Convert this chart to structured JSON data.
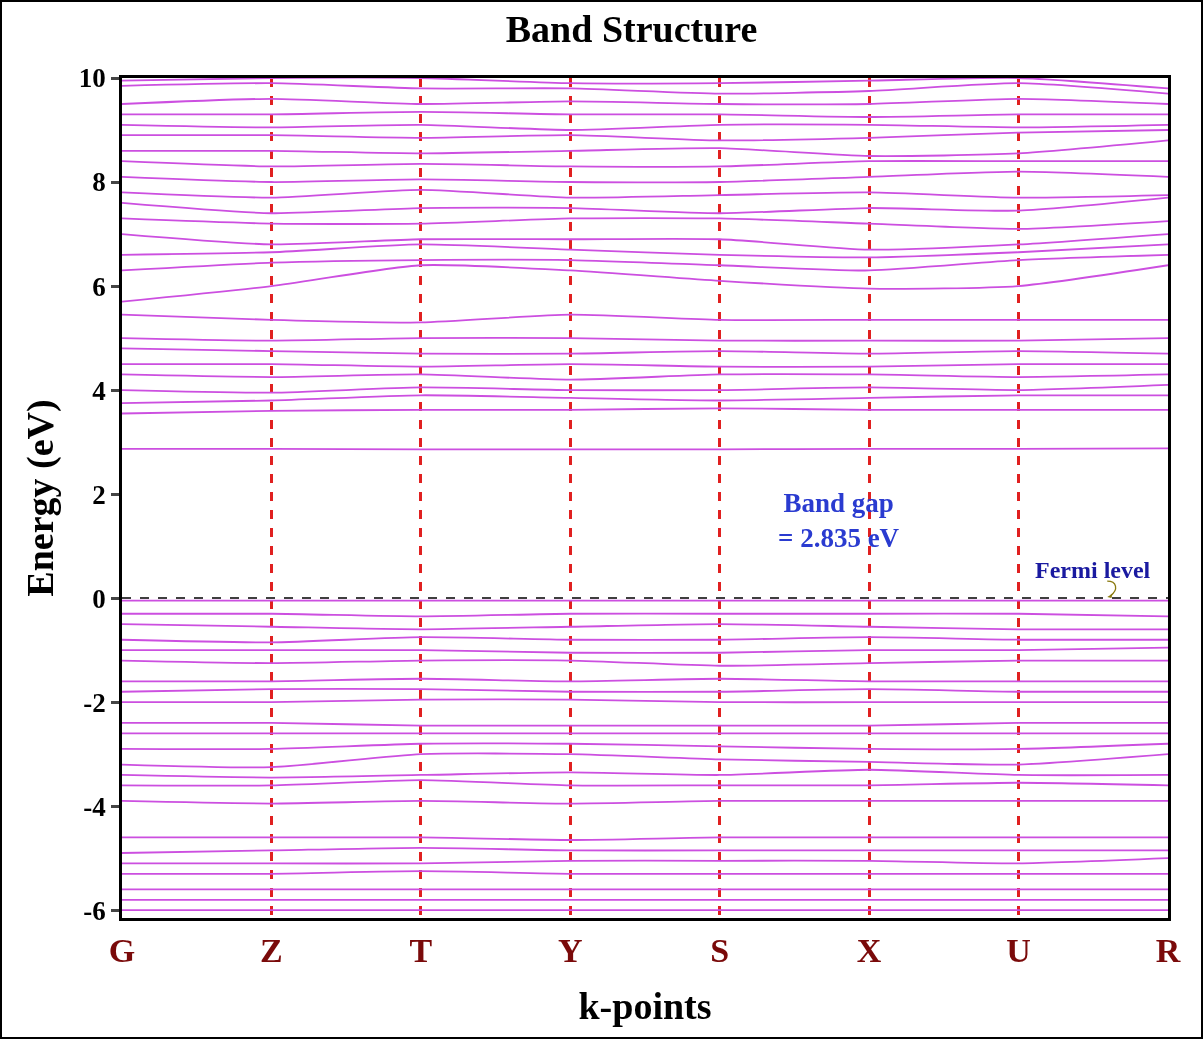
{
  "chart_data": {
    "type": "line",
    "title": "Band Structure",
    "xlabel": "k-points",
    "ylabel": "Energy (eV)",
    "categories": [
      "G",
      "Z",
      "T",
      "Y",
      "S",
      "X",
      "U",
      "R"
    ],
    "ylim": [
      -6.15,
      10
    ],
    "yticks": [
      -6,
      -4,
      -2,
      0,
      2,
      4,
      6,
      8,
      10
    ],
    "grid": "x",
    "marker": "none",
    "line_style": "solid",
    "series": [
      {
        "color": "#cc4fe0",
        "values": [
          2.87,
          2.87,
          2.86,
          2.86,
          2.86,
          2.87,
          2.87,
          2.88
        ]
      },
      {
        "color": "#cc4fe0",
        "values": [
          3.55,
          3.6,
          3.62,
          3.62,
          3.65,
          3.62,
          3.62,
          3.62
        ]
      },
      {
        "color": "#cc4fe0",
        "values": [
          3.75,
          3.8,
          3.9,
          3.85,
          3.8,
          3.85,
          3.9,
          3.9
        ]
      },
      {
        "color": "#cc4fe0",
        "values": [
          4.0,
          3.95,
          4.05,
          4.0,
          4.0,
          4.05,
          4.0,
          4.1
        ]
      },
      {
        "color": "#cc4fe0",
        "values": [
          4.3,
          4.25,
          4.3,
          4.2,
          4.3,
          4.3,
          4.25,
          4.3
        ]
      },
      {
        "color": "#cc4fe0",
        "values": [
          4.5,
          4.5,
          4.45,
          4.5,
          4.45,
          4.45,
          4.5,
          4.5
        ]
      },
      {
        "color": "#cc4fe0",
        "values": [
          4.8,
          4.75,
          4.7,
          4.7,
          4.75,
          4.7,
          4.75,
          4.7
        ]
      },
      {
        "color": "#cc4fe0",
        "values": [
          5.0,
          4.95,
          5.0,
          5.0,
          4.95,
          4.95,
          4.95,
          5.0
        ]
      },
      {
        "color": "#cc4fe0",
        "values": [
          5.45,
          5.35,
          5.3,
          5.45,
          5.35,
          5.35,
          5.35,
          5.35
        ]
      },
      {
        "color": "#cc4fe0",
        "values": [
          5.7,
          6.0,
          6.4,
          6.3,
          6.1,
          5.95,
          6.0,
          6.4
        ]
      },
      {
        "color": "#cc4fe0",
        "values": [
          6.3,
          6.45,
          6.5,
          6.5,
          6.4,
          6.3,
          6.5,
          6.6
        ]
      },
      {
        "color": "#cc4fe0",
        "values": [
          6.6,
          6.65,
          6.8,
          6.7,
          6.6,
          6.55,
          6.65,
          6.8
        ]
      },
      {
        "color": "#cc4fe0",
        "values": [
          7.0,
          6.8,
          6.9,
          6.9,
          6.9,
          6.7,
          6.8,
          7.0
        ]
      },
      {
        "color": "#cc4fe0",
        "values": [
          7.3,
          7.2,
          7.2,
          7.3,
          7.3,
          7.2,
          7.1,
          7.25
        ]
      },
      {
        "color": "#cc4fe0",
        "values": [
          7.6,
          7.4,
          7.5,
          7.5,
          7.4,
          7.5,
          7.45,
          7.7
        ]
      },
      {
        "color": "#cc4fe0",
        "values": [
          7.8,
          7.7,
          7.85,
          7.7,
          7.75,
          7.8,
          7.7,
          7.75
        ]
      },
      {
        "color": "#cc4fe0",
        "values": [
          8.1,
          8.0,
          8.05,
          8.0,
          8.0,
          8.1,
          8.2,
          8.1
        ]
      },
      {
        "color": "#cc4fe0",
        "values": [
          8.4,
          8.3,
          8.35,
          8.3,
          8.3,
          8.4,
          8.4,
          8.4
        ]
      },
      {
        "color": "#cc4fe0",
        "values": [
          8.6,
          8.6,
          8.55,
          8.6,
          8.65,
          8.5,
          8.55,
          8.8
        ]
      },
      {
        "color": "#cc4fe0",
        "values": [
          8.9,
          8.9,
          8.85,
          8.9,
          8.8,
          8.85,
          8.95,
          9.0
        ]
      },
      {
        "color": "#cc4fe0",
        "values": [
          9.1,
          9.05,
          9.1,
          9.0,
          9.1,
          9.1,
          9.05,
          9.1
        ]
      },
      {
        "color": "#cc4fe0",
        "values": [
          9.3,
          9.3,
          9.35,
          9.3,
          9.3,
          9.25,
          9.3,
          9.3
        ]
      },
      {
        "color": "#cc4fe0",
        "values": [
          9.5,
          9.6,
          9.5,
          9.55,
          9.5,
          9.5,
          9.6,
          9.5
        ]
      },
      {
        "color": "#cc4fe0",
        "values": [
          9.85,
          9.9,
          9.8,
          9.8,
          9.7,
          9.75,
          9.9,
          9.7
        ]
      },
      {
        "color": "#cc4fe0",
        "values": [
          9.95,
          10.0,
          10.0,
          9.9,
          9.9,
          9.95,
          10.0,
          9.8
        ]
      },
      {
        "color": "#cc4fe0",
        "values": [
          -0.05,
          -0.05,
          -0.05,
          -0.05,
          -0.05,
          -0.05,
          -0.05,
          -0.05
        ]
      },
      {
        "color": "#cc4fe0",
        "values": [
          -0.3,
          -0.3,
          -0.35,
          -0.3,
          -0.3,
          -0.3,
          -0.3,
          -0.35
        ]
      },
      {
        "color": "#cc4fe0",
        "values": [
          -0.5,
          -0.55,
          -0.6,
          -0.55,
          -0.5,
          -0.55,
          -0.6,
          -0.6
        ]
      },
      {
        "color": "#cc4fe0",
        "values": [
          -0.8,
          -0.85,
          -0.75,
          -0.8,
          -0.8,
          -0.75,
          -0.8,
          -0.8
        ]
      },
      {
        "color": "#cc4fe0",
        "values": [
          -1.0,
          -1.0,
          -1.0,
          -1.05,
          -1.05,
          -1.0,
          -1.0,
          -0.95
        ]
      },
      {
        "color": "#cc4fe0",
        "values": [
          -1.2,
          -1.25,
          -1.2,
          -1.2,
          -1.3,
          -1.25,
          -1.2,
          -1.2
        ]
      },
      {
        "color": "#cc4fe0",
        "values": [
          -1.6,
          -1.6,
          -1.55,
          -1.6,
          -1.55,
          -1.6,
          -1.6,
          -1.6
        ]
      },
      {
        "color": "#cc4fe0",
        "values": [
          -1.8,
          -1.75,
          -1.75,
          -1.8,
          -1.8,
          -1.75,
          -1.8,
          -1.8
        ]
      },
      {
        "color": "#cc4fe0",
        "values": [
          -2.0,
          -2.0,
          -1.95,
          -1.95,
          -2.0,
          -2.0,
          -2.0,
          -2.0
        ]
      },
      {
        "color": "#cc4fe0",
        "values": [
          -2.4,
          -2.4,
          -2.45,
          -2.45,
          -2.45,
          -2.45,
          -2.4,
          -2.4
        ]
      },
      {
        "color": "#cc4fe0",
        "values": [
          -2.6,
          -2.6,
          -2.6,
          -2.6,
          -2.6,
          -2.6,
          -2.6,
          -2.6
        ]
      },
      {
        "color": "#cc4fe0",
        "values": [
          -2.9,
          -2.9,
          -2.8,
          -2.8,
          -2.85,
          -2.9,
          -2.9,
          -2.8
        ]
      },
      {
        "color": "#cc4fe0",
        "values": [
          -3.2,
          -3.25,
          -3.0,
          -3.0,
          -3.1,
          -3.15,
          -3.2,
          -3.0
        ]
      },
      {
        "color": "#cc4fe0",
        "values": [
          -3.4,
          -3.45,
          -3.4,
          -3.35,
          -3.4,
          -3.3,
          -3.4,
          -3.4
        ]
      },
      {
        "color": "#cc4fe0",
        "values": [
          -3.6,
          -3.6,
          -3.5,
          -3.6,
          -3.6,
          -3.6,
          -3.55,
          -3.6
        ]
      },
      {
        "color": "#cc4fe0",
        "values": [
          -3.9,
          -3.95,
          -3.9,
          -3.95,
          -3.9,
          -3.9,
          -3.9,
          -3.9
        ]
      },
      {
        "color": "#cc4fe0",
        "values": [
          -4.6,
          -4.6,
          -4.6,
          -4.65,
          -4.6,
          -4.6,
          -4.6,
          -4.6
        ]
      },
      {
        "color": "#cc4fe0",
        "values": [
          -4.9,
          -4.85,
          -4.8,
          -4.85,
          -4.85,
          -4.85,
          -4.85,
          -4.85
        ]
      },
      {
        "color": "#cc4fe0",
        "values": [
          -5.1,
          -5.1,
          -5.1,
          -5.05,
          -5.05,
          -5.05,
          -5.1,
          -5.0
        ]
      },
      {
        "color": "#cc4fe0",
        "values": [
          -5.3,
          -5.3,
          -5.25,
          -5.3,
          -5.3,
          -5.3,
          -5.3,
          -5.3
        ]
      },
      {
        "color": "#cc4fe0",
        "values": [
          -5.6,
          -5.6,
          -5.6,
          -5.6,
          -5.6,
          -5.6,
          -5.6,
          -5.6
        ]
      },
      {
        "color": "#cc4fe0",
        "values": [
          -5.8,
          -5.8,
          -5.8,
          -5.8,
          -5.8,
          -5.8,
          -5.8,
          -5.8
        ]
      },
      {
        "color": "#cc4fe0",
        "values": [
          -6.0,
          -6.0,
          -6.0,
          -6.0,
          -6.0,
          -6.0,
          -6.0,
          -6.0
        ]
      }
    ],
    "ref_lines": [
      {
        "axis": "y",
        "value": 0,
        "color": "#000000",
        "line_style": "dashed"
      }
    ],
    "annotations": [
      "Band gap\n= 2.835 eV",
      "Fermi level"
    ]
  }
}
